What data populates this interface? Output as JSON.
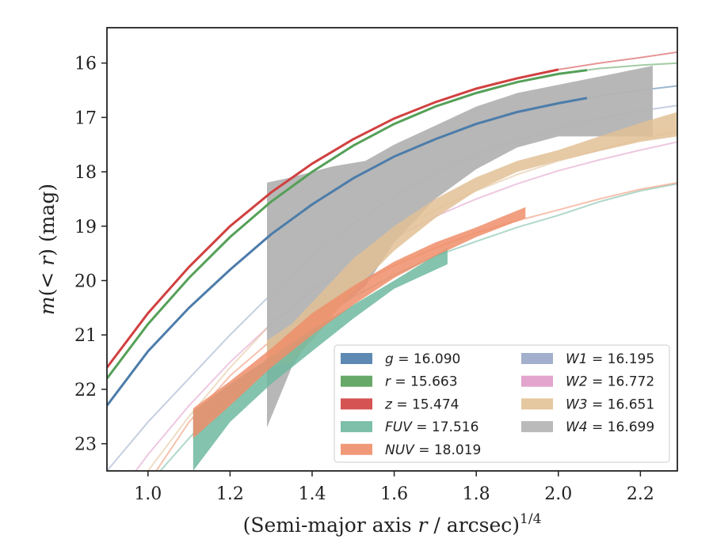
{
  "chart_data": {
    "type": "line",
    "xlabel_main": "(Semi-major axis ",
    "xlabel_var": "r",
    "xlabel_tail": " / arcsec)",
    "xlabel_sup": "1/4",
    "ylabel_m": "m",
    "ylabel_mid": "(< ",
    "ylabel_r": "r",
    "ylabel_tail": ") (mag)",
    "xlim": [
      0.9,
      2.29
    ],
    "ylim": [
      23.5,
      15.35
    ],
    "xticks": [
      {
        "value": 1.0,
        "label": "1.0"
      },
      {
        "value": 1.2,
        "label": "1.2"
      },
      {
        "value": 1.4,
        "label": "1.4"
      },
      {
        "value": 1.6,
        "label": "1.6"
      },
      {
        "value": 1.8,
        "label": "1.8"
      },
      {
        "value": 2.0,
        "label": "2.0"
      },
      {
        "value": 2.2,
        "label": "2.2"
      }
    ],
    "yticks": [
      {
        "value": 16,
        "label": "16"
      },
      {
        "value": 17,
        "label": "17"
      },
      {
        "value": 18,
        "label": "18"
      },
      {
        "value": 19,
        "label": "19"
      },
      {
        "value": 20,
        "label": "20"
      },
      {
        "value": 21,
        "label": "21"
      },
      {
        "value": 22,
        "label": "22"
      },
      {
        "value": 23,
        "label": "23"
      }
    ],
    "legend_position": "lower-right",
    "series": [
      {
        "key": "g",
        "legend_var": "g",
        "legend_val": "= 16.090",
        "color": "#4c7caa",
        "model_x": [
          0.9,
          1.0,
          1.1,
          1.2,
          1.3,
          1.4,
          1.5,
          1.6,
          1.7,
          1.8,
          1.9,
          2.0,
          2.1,
          2.2,
          2.29
        ],
        "model_y": [
          22.3,
          21.3,
          20.5,
          19.8,
          19.15,
          18.6,
          18.12,
          17.72,
          17.4,
          17.12,
          16.9,
          16.74,
          16.6,
          16.5,
          16.42
        ],
        "data_x_max": 2.07
      },
      {
        "key": "r",
        "legend_var": "r",
        "legend_val": "= 15.663",
        "color": "#55a058",
        "model_x": [
          0.9,
          1.0,
          1.1,
          1.2,
          1.3,
          1.4,
          1.5,
          1.6,
          1.7,
          1.8,
          1.9,
          2.0,
          2.1,
          2.2,
          2.29
        ],
        "model_y": [
          21.8,
          20.8,
          19.95,
          19.2,
          18.55,
          18.0,
          17.52,
          17.12,
          16.8,
          16.55,
          16.35,
          16.2,
          16.1,
          16.04,
          16.0
        ],
        "data_x_max": 2.07
      },
      {
        "key": "z",
        "legend_var": "z",
        "legend_val": "= 15.474",
        "color": "#d14040",
        "model_x": [
          0.9,
          1.0,
          1.1,
          1.2,
          1.3,
          1.4,
          1.5,
          1.6,
          1.7,
          1.8,
          1.9,
          2.0,
          2.1,
          2.2,
          2.29
        ],
        "model_y": [
          21.6,
          20.6,
          19.75,
          19.0,
          18.38,
          17.85,
          17.4,
          17.02,
          16.72,
          16.47,
          16.28,
          16.12,
          16.0,
          15.9,
          15.8
        ],
        "data_x_max": 2.0
      },
      {
        "key": "FUV",
        "legend_var": "FUV",
        "legend_val": "= 17.516",
        "color": "#6fb8a0",
        "model_x": [
          1.03,
          1.1,
          1.2,
          1.3,
          1.4,
          1.5,
          1.6,
          1.7,
          1.8,
          1.9,
          2.0,
          2.1,
          2.2,
          2.29
        ],
        "model_y": [
          23.5,
          22.9,
          22.1,
          21.4,
          20.8,
          20.3,
          19.9,
          19.55,
          19.28,
          19.02,
          18.8,
          18.55,
          18.35,
          18.22
        ],
        "band_x": [
          1.11,
          1.2,
          1.3,
          1.4,
          1.5,
          1.6,
          1.73
        ],
        "band_lo": [
          23.5,
          22.6,
          21.9,
          21.3,
          20.7,
          20.15,
          19.7
        ],
        "band_hi": [
          22.4,
          21.9,
          21.4,
          20.9,
          20.45,
          20.0,
          19.4
        ]
      },
      {
        "key": "NUV",
        "legend_var": "NUV",
        "legend_val": "= 18.019",
        "color": "#ee8e6a",
        "model_x": [
          1.02,
          1.1,
          1.2,
          1.3,
          1.4,
          1.5,
          1.6,
          1.7,
          1.8,
          1.9,
          2.0,
          2.1,
          2.2,
          2.29
        ],
        "model_y": [
          23.5,
          22.6,
          21.75,
          21.1,
          20.55,
          20.1,
          19.72,
          19.4,
          19.12,
          18.9,
          18.7,
          18.5,
          18.32,
          18.2
        ],
        "band_x": [
          1.11,
          1.2,
          1.3,
          1.4,
          1.5,
          1.6,
          1.7,
          1.8,
          1.92
        ],
        "band_lo": [
          22.9,
          22.3,
          21.6,
          21.0,
          20.45,
          19.95,
          19.55,
          19.2,
          18.85
        ],
        "band_hi": [
          22.35,
          21.85,
          21.25,
          20.6,
          20.1,
          19.65,
          19.3,
          19.02,
          18.65
        ]
      },
      {
        "key": "W1",
        "legend_var": "W1",
        "legend_val": "= 16.195",
        "color": "#98a7c8",
        "model_x": [
          0.9,
          1.0,
          1.1,
          1.2,
          1.3,
          1.4,
          1.5,
          1.6,
          1.7,
          1.8,
          1.9,
          2.0,
          2.1,
          2.2,
          2.29
        ],
        "model_y": [
          23.5,
          22.6,
          21.8,
          21.0,
          20.25,
          19.55,
          18.95,
          18.45,
          18.02,
          17.68,
          17.42,
          17.2,
          17.02,
          16.88,
          16.78
        ]
      },
      {
        "key": "W2",
        "legend_var": "W2",
        "legend_val": "= 16.772",
        "color": "#e09bc8",
        "model_x": [
          0.97,
          1.0,
          1.1,
          1.2,
          1.3,
          1.4,
          1.5,
          1.6,
          1.7,
          1.8,
          1.9,
          2.0,
          2.1,
          2.2,
          2.29
        ],
        "model_y": [
          23.5,
          23.2,
          22.3,
          21.5,
          20.8,
          20.2,
          19.68,
          19.22,
          18.82,
          18.5,
          18.22,
          17.98,
          17.78,
          17.6,
          17.45
        ]
      },
      {
        "key": "W3",
        "legend_var": "W3",
        "legend_val": "= 16.651",
        "color": "#e2c196",
        "model_x": [
          1.0,
          1.1,
          1.2,
          1.3,
          1.4,
          1.5,
          1.6,
          1.7,
          1.8,
          1.9,
          2.0,
          2.1,
          2.2,
          2.29
        ],
        "model_y": [
          23.5,
          22.5,
          21.6,
          20.8,
          20.15,
          19.58,
          19.1,
          18.7,
          18.35,
          18.05,
          17.8,
          17.6,
          17.4,
          17.25
        ],
        "band_x": [
          1.29,
          1.35,
          1.4,
          1.5,
          1.6,
          1.7,
          1.8,
          1.9,
          2.0,
          2.1,
          2.2,
          2.29
        ],
        "band_lo": [
          21.6,
          21.5,
          21.1,
          20.2,
          19.45,
          18.85,
          18.35,
          18.0,
          17.8,
          17.62,
          17.45,
          17.35
        ],
        "band_hi": [
          21.1,
          20.8,
          20.4,
          19.6,
          19.0,
          18.5,
          18.1,
          17.8,
          17.6,
          17.35,
          17.1,
          16.9
        ]
      },
      {
        "key": "W4",
        "legend_var": "W4",
        "legend_val": "= 16.699",
        "color": "#b3b3b3",
        "band_x": [
          1.29,
          1.35,
          1.4,
          1.45,
          1.53,
          1.6,
          1.7,
          1.8,
          1.9,
          2.0,
          2.1,
          2.23
        ],
        "band_lo": [
          22.7,
          21.6,
          21.0,
          20.6,
          20.1,
          19.3,
          18.5,
          17.95,
          17.55,
          17.35,
          17.35,
          17.35
        ],
        "band_hi": [
          18.2,
          18.1,
          18.0,
          17.9,
          17.8,
          17.5,
          17.15,
          16.8,
          16.55,
          16.4,
          16.25,
          16.05
        ]
      }
    ],
    "legend_columns": [
      [
        "g",
        "r",
        "z",
        "FUV",
        "NUV"
      ],
      [
        "W1",
        "W2",
        "W3",
        "W4"
      ]
    ]
  }
}
